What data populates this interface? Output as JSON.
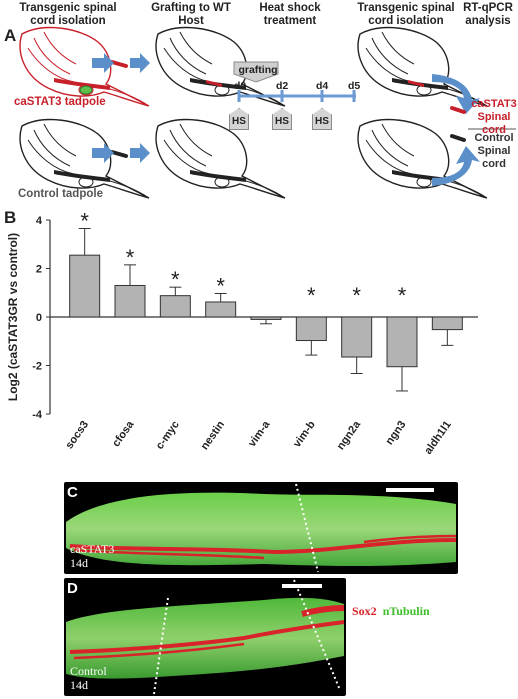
{
  "panelA": {
    "letter": "A",
    "headers": {
      "isolation1": "Transgenic spinal cord isolation",
      "grafting": "Grafting to WT Host",
      "heatshock": "Heat shock treatment",
      "isolation2": "Transgenic spinal cord isolation",
      "analysis": "RT-qPCR analysis"
    },
    "castat3_tadpole": "caSTAT3 tadpole",
    "control_tadpole": "Control tadpole",
    "grafting_flag": "grafting",
    "days": [
      "d0",
      "d2",
      "d4",
      "d5"
    ],
    "hs_label": "HS",
    "cast_spinal_line1": "caSTAT3",
    "cast_spinal_line2": "Spinal cord",
    "control_spinal_line1": "Control",
    "control_spinal_line2": "Spinal cord",
    "colors": {
      "red": "#c8202a",
      "arrow": "#5b8fc9",
      "timeline": "#6a9bd4"
    }
  },
  "panelB": {
    "letter": "B",
    "chart_data": {
      "type": "bar",
      "categories": [
        "socs3",
        "cfosa",
        "c-myc",
        "nestin",
        "vim-a",
        "vim-b",
        "ngn2a",
        "ngn3",
        "aldh1l1"
      ],
      "values": [
        2.55,
        1.3,
        0.88,
        0.62,
        -0.1,
        -0.97,
        -1.65,
        -2.05,
        -0.52
      ],
      "errors": [
        1.1,
        0.85,
        0.35,
        0.35,
        0.18,
        0.6,
        0.68,
        1.0,
        0.65
      ],
      "significant": [
        true,
        true,
        true,
        true,
        false,
        true,
        true,
        true,
        false
      ],
      "ylabel": "Log2 (caSTAT3GR vs control)",
      "ylim": [
        -4,
        4
      ],
      "yticks": [
        "-4",
        "-2",
        "0",
        "2",
        "4"
      ],
      "star": "*",
      "bar_color": "#b3b3b3"
    }
  },
  "panelC": {
    "letter": "C",
    "label_line1": "caSTAT3",
    "label_line2": "14d"
  },
  "panelD": {
    "letter": "D",
    "label_line1": "Control",
    "label_line2": "14d",
    "legend_sox2": "Sox2",
    "legend_ntub": "nTubulin",
    "colors": {
      "sox2": "#d8232a",
      "ntub": "#3cbf2a"
    }
  }
}
